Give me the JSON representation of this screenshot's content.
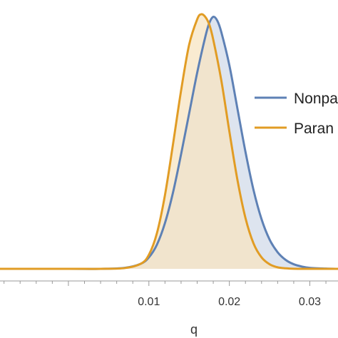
{
  "chart_data": {
    "type": "area",
    "xlabel": "q",
    "xlim": [
      -0.0085,
      0.0335
    ],
    "ylim": [
      0,
      1.0
    ],
    "x_ticks": [
      0.01,
      0.02,
      0.03
    ],
    "x_tick_labels": [
      "0.01",
      "0.02",
      "0.03"
    ],
    "grid": false,
    "legend_position": "right",
    "series": [
      {
        "name": "Nonpa",
        "color": "#5E81B5",
        "fill": "#DDE4EF",
        "x": [
          -0.0085,
          0.0,
          0.004,
          0.007,
          0.009,
          0.01,
          0.011,
          0.012,
          0.013,
          0.014,
          0.015,
          0.016,
          0.017,
          0.0175,
          0.018,
          0.0185,
          0.019,
          0.02,
          0.021,
          0.022,
          0.023,
          0.024,
          0.025,
          0.026,
          0.027,
          0.028,
          0.029,
          0.03,
          0.032,
          0.0335
        ],
        "y": [
          0,
          0,
          0.0,
          0.004,
          0.02,
          0.045,
          0.095,
          0.18,
          0.3,
          0.45,
          0.61,
          0.77,
          0.91,
          0.965,
          0.99,
          0.975,
          0.93,
          0.8,
          0.63,
          0.46,
          0.31,
          0.195,
          0.115,
          0.065,
          0.035,
          0.018,
          0.009,
          0.004,
          0.001,
          0
        ]
      },
      {
        "name": "Paran",
        "color": "#E19C24",
        "fill": "#F7E4C2",
        "x": [
          -0.0085,
          0.0,
          0.004,
          0.007,
          0.009,
          0.01,
          0.011,
          0.012,
          0.013,
          0.014,
          0.015,
          0.016,
          0.0165,
          0.017,
          0.0175,
          0.018,
          0.019,
          0.02,
          0.021,
          0.022,
          0.023,
          0.024,
          0.025,
          0.026,
          0.027,
          0.028,
          0.03,
          0.0335
        ],
        "y": [
          0,
          0,
          0.0,
          0.003,
          0.02,
          0.055,
          0.14,
          0.29,
          0.49,
          0.7,
          0.88,
          0.98,
          1.0,
          0.99,
          0.96,
          0.9,
          0.74,
          0.54,
          0.35,
          0.2,
          0.1,
          0.045,
          0.018,
          0.006,
          0.002,
          0.0005,
          0,
          0
        ]
      }
    ]
  }
}
